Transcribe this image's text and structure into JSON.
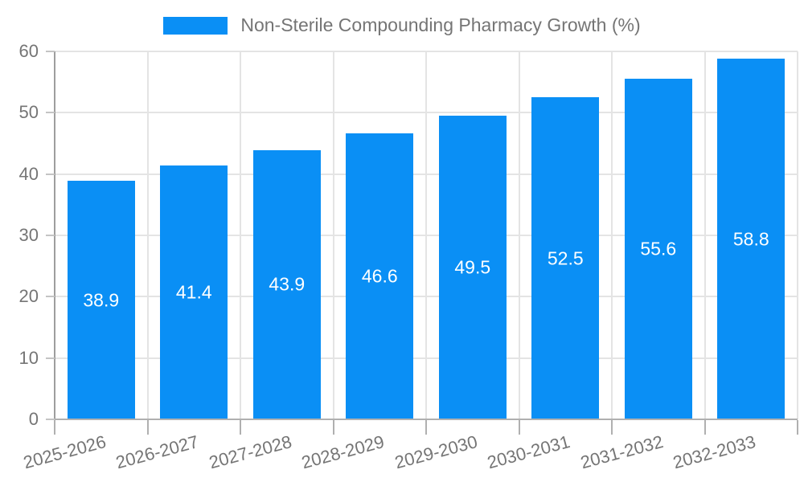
{
  "chart_data": {
    "type": "bar",
    "title": "Non-Sterile Compounding Pharmacy Growth (%)",
    "legend": {
      "label": "Non-Sterile Compounding Pharmacy Growth (%)",
      "position": "top-center"
    },
    "categories": [
      "2025-2026",
      "2026-2027",
      "2027-2028",
      "2028-2029",
      "2029-2030",
      "2030-2031",
      "2031-2032",
      "2032-2033"
    ],
    "values": [
      38.9,
      41.4,
      43.9,
      46.6,
      49.5,
      52.5,
      55.6,
      58.8
    ],
    "value_labels": [
      "38.9",
      "41.4",
      "43.9",
      "46.6",
      "49.5",
      "52.5",
      "55.6",
      "58.8"
    ],
    "xlabel": "",
    "ylabel": "",
    "ylim": [
      0,
      60
    ],
    "yticks": [
      0,
      10,
      20,
      30,
      40,
      50,
      60
    ],
    "grid": true,
    "colors": {
      "bar": "#0a8ff5",
      "value_label": "#ffffff",
      "axis_text": "#757575",
      "gridline": "#e4e4e4",
      "axis_line": "#9e9e9e",
      "background": "#ffffff"
    }
  }
}
